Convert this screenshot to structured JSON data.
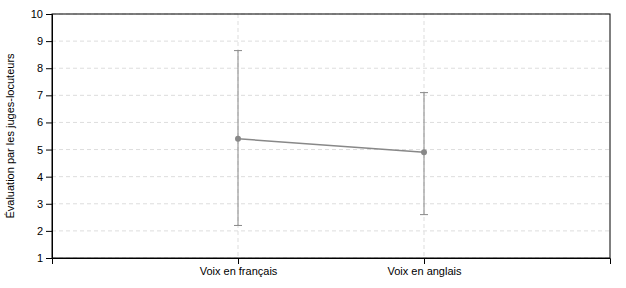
{
  "chart_data": {
    "type": "line",
    "categories": [
      "Voix en français",
      "Voix en anglais"
    ],
    "values": [
      5.4,
      4.9
    ],
    "lower": [
      2.2,
      2.6
    ],
    "upper": [
      8.65,
      7.1
    ],
    "color": "#888888",
    "marker": "o",
    "line_style": "solid",
    "ylabel": "Évaluation par les juges-locuteurs",
    "ylim": [
      1,
      10
    ],
    "yticks": [
      1,
      2,
      3,
      4,
      5,
      6,
      7,
      8,
      9,
      10
    ],
    "grid": true
  }
}
